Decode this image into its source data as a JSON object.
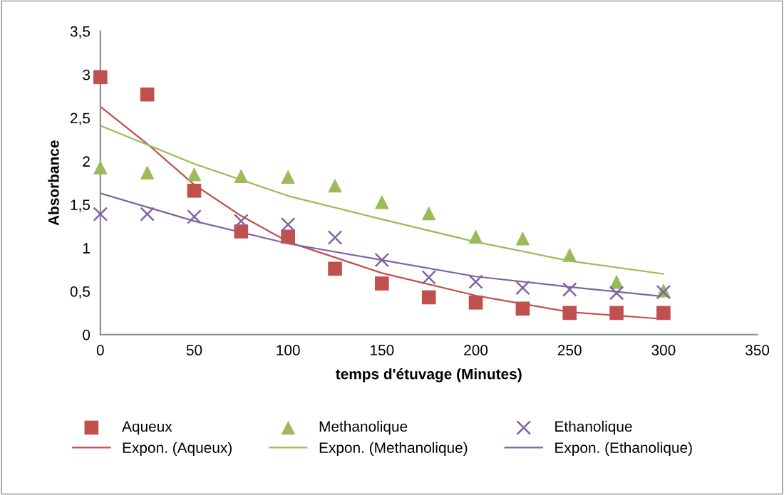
{
  "chart_data": {
    "type": "scatter",
    "xlabel": "temps d'étuvage (Minutes)",
    "ylabel": "Absorbance",
    "xlim": [
      0,
      350
    ],
    "xticks": [
      0,
      50,
      100,
      150,
      200,
      250,
      300,
      350
    ],
    "ylim": [
      0,
      3.5
    ],
    "yticks": [
      0,
      {
        "value": 0.5,
        "label": "0,5"
      },
      1,
      {
        "value": 1.5,
        "label": "1,5"
      },
      2,
      {
        "value": 2.5,
        "label": "2,5"
      },
      3,
      {
        "value": 3.5,
        "label": "3,5"
      }
    ],
    "grid": false,
    "legend": "bottom",
    "series": [
      {
        "name": "Aqueux",
        "marker": "square",
        "color": "#c0504d",
        "x": [
          0,
          25,
          50,
          75,
          100,
          125,
          150,
          175,
          200,
          225,
          250,
          275,
          300
        ],
        "values": [
          2.97,
          2.77,
          1.66,
          1.19,
          1.13,
          0.76,
          0.59,
          0.43,
          0.37,
          0.3,
          0.25,
          0.25,
          0.25
        ]
      },
      {
        "name": "Expon. (Aqueux)",
        "type": "line",
        "marker": "none",
        "color": "#c0504d",
        "x": [
          0,
          25,
          50,
          75,
          100,
          150,
          200,
          250,
          300
        ],
        "values": [
          2.63,
          2.2,
          1.73,
          1.37,
          1.07,
          0.71,
          0.45,
          0.26,
          0.18
        ]
      },
      {
        "name": "Methanolique",
        "marker": "triangle",
        "color": "#9bbb59",
        "x": [
          0,
          25,
          50,
          75,
          100,
          125,
          150,
          175,
          200,
          225,
          250,
          275,
          300
        ],
        "values": [
          1.93,
          1.87,
          1.85,
          1.83,
          1.82,
          1.72,
          1.53,
          1.4,
          1.13,
          1.11,
          0.92,
          0.61,
          0.51
        ]
      },
      {
        "name": "Expon. (Methanolique)",
        "type": "line",
        "marker": "none",
        "color": "#9bbb59",
        "x": [
          0,
          50,
          100,
          150,
          200,
          250,
          300
        ],
        "values": [
          2.41,
          1.97,
          1.6,
          1.33,
          1.07,
          0.85,
          0.7
        ]
      },
      {
        "name": "Ethanolique",
        "marker": "cross",
        "color": "#8064a2",
        "x": [
          0,
          25,
          50,
          75,
          100,
          125,
          150,
          175,
          200,
          225,
          250,
          275,
          300
        ],
        "values": [
          1.39,
          1.39,
          1.36,
          1.31,
          1.27,
          1.12,
          0.86,
          0.66,
          0.61,
          0.54,
          0.52,
          0.48,
          0.49
        ]
      },
      {
        "name": "Expon. (Ethanolique)",
        "type": "line",
        "marker": "none",
        "color": "#8064a2",
        "x": [
          0,
          50,
          100,
          150,
          200,
          250,
          300
        ],
        "values": [
          1.63,
          1.31,
          1.05,
          0.86,
          0.67,
          0.55,
          0.44
        ]
      }
    ]
  }
}
